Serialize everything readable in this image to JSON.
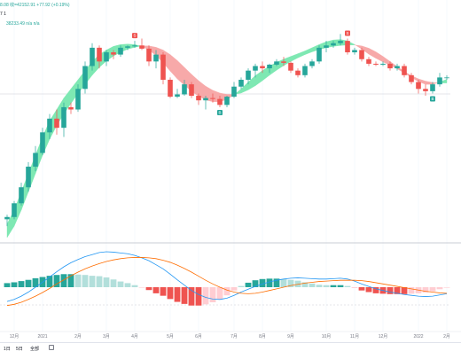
{
  "header": {
    "price_line": "8.08  收=42152.91  +77.92 (+0.19%)",
    "indicator_line_1": "7 1",
    "indicator_line_2": "38233.49  n/a  n/a"
  },
  "timeframes": [
    "1日",
    "5日",
    "全部"
  ],
  "colors": {
    "up": "#26a69a",
    "down": "#ef5350",
    "cloud_up": "#7ee8b3",
    "cloud_down": "#f7a9a9",
    "macd_line": "#2196f3",
    "signal_line": "#ff6d00",
    "hist_up_strong": "#26a69a",
    "hist_up_weak": "#b2dfdb",
    "hist_down_strong": "#ef5350",
    "hist_down_weak": "#ffcdd2",
    "grid": "#f0f3fa",
    "text": "#787b86"
  },
  "chart_data": [
    {
      "type": "candlestick",
      "x_labels": [
        "12月",
        "2021",
        "2月",
        "3月",
        "4月",
        "5月",
        "6月",
        "7月",
        "8月",
        "9月",
        "10月",
        "11月",
        "12月",
        "2022",
        "2月"
      ],
      "y_range": [
        20,
        70
      ],
      "candles": [
        {
          "o": 24.0,
          "h": 25.0,
          "l": 22.5,
          "c": 24.5
        },
        {
          "o": 24.5,
          "h": 28.0,
          "l": 24.0,
          "c": 27.5
        },
        {
          "o": 27.5,
          "h": 32.0,
          "l": 27.0,
          "c": 31.0
        },
        {
          "o": 31.0,
          "h": 36.5,
          "l": 30.0,
          "c": 35.5
        },
        {
          "o": 35.5,
          "h": 40.0,
          "l": 34.5,
          "c": 38.5
        },
        {
          "o": 38.5,
          "h": 44.0,
          "l": 38.0,
          "c": 43.0
        },
        {
          "o": 43.0,
          "h": 47.0,
          "l": 41.5,
          "c": 46.0
        },
        {
          "o": 46.0,
          "h": 48.0,
          "l": 42.5,
          "c": 44.0
        },
        {
          "o": 44.0,
          "h": 49.5,
          "l": 42.0,
          "c": 48.5
        },
        {
          "o": 48.5,
          "h": 49.5,
          "l": 47.0,
          "c": 48.0
        },
        {
          "o": 48.0,
          "h": 53.5,
          "l": 47.5,
          "c": 52.5
        },
        {
          "o": 52.5,
          "h": 58.5,
          "l": 51.5,
          "c": 57.5
        },
        {
          "o": 57.5,
          "h": 62.5,
          "l": 56.5,
          "c": 61.5
        },
        {
          "o": 61.5,
          "h": 62.0,
          "l": 57.0,
          "c": 58.5
        },
        {
          "o": 58.5,
          "h": 61.0,
          "l": 57.5,
          "c": 60.5
        },
        {
          "o": 60.5,
          "h": 61.0,
          "l": 59.0,
          "c": 60.0
        },
        {
          "o": 60.0,
          "h": 62.0,
          "l": 59.5,
          "c": 61.5
        },
        {
          "o": 61.5,
          "h": 62.0,
          "l": 61.0,
          "c": 61.8
        },
        {
          "o": 61.8,
          "h": 63.0,
          "l": 61.5,
          "c": 62.0
        },
        {
          "o": 62.0,
          "h": 63.5,
          "l": 61.0,
          "c": 61.3
        },
        {
          "o": 61.3,
          "h": 62.0,
          "l": 57.5,
          "c": 58.5
        },
        {
          "o": 58.5,
          "h": 61.0,
          "l": 57.0,
          "c": 60.0
        },
        {
          "o": 60.0,
          "h": 60.5,
          "l": 53.5,
          "c": 54.5
        },
        {
          "o": 54.5,
          "h": 55.0,
          "l": 50.5,
          "c": 50.8
        },
        {
          "o": 50.8,
          "h": 52.5,
          "l": 50.5,
          "c": 51.3
        },
        {
          "o": 51.3,
          "h": 54.5,
          "l": 51.0,
          "c": 53.5
        },
        {
          "o": 53.5,
          "h": 54.0,
          "l": 50.5,
          "c": 51.0
        },
        {
          "o": 51.0,
          "h": 51.5,
          "l": 49.0,
          "c": 50.0
        },
        {
          "o": 50.0,
          "h": 51.0,
          "l": 48.0,
          "c": 50.5
        },
        {
          "o": 50.5,
          "h": 51.5,
          "l": 49.5,
          "c": 50.3
        },
        {
          "o": 50.3,
          "h": 51.0,
          "l": 48.5,
          "c": 49.0
        },
        {
          "o": 49.0,
          "h": 51.0,
          "l": 48.5,
          "c": 50.8
        },
        {
          "o": 50.8,
          "h": 54.0,
          "l": 50.5,
          "c": 53.0
        },
        {
          "o": 53.0,
          "h": 55.0,
          "l": 52.5,
          "c": 54.5
        },
        {
          "o": 54.5,
          "h": 57.0,
          "l": 53.5,
          "c": 56.5
        },
        {
          "o": 56.5,
          "h": 58.0,
          "l": 55.0,
          "c": 57.5
        },
        {
          "o": 57.5,
          "h": 58.5,
          "l": 56.0,
          "c": 57.0
        },
        {
          "o": 57.0,
          "h": 58.0,
          "l": 56.0,
          "c": 57.8
        },
        {
          "o": 57.8,
          "h": 59.0,
          "l": 57.5,
          "c": 58.5
        },
        {
          "o": 58.5,
          "h": 59.5,
          "l": 57.5,
          "c": 58.2
        },
        {
          "o": 58.2,
          "h": 58.5,
          "l": 56.0,
          "c": 56.5
        },
        {
          "o": 56.5,
          "h": 57.0,
          "l": 55.0,
          "c": 55.5
        },
        {
          "o": 55.5,
          "h": 58.0,
          "l": 55.0,
          "c": 57.5
        },
        {
          "o": 57.5,
          "h": 59.0,
          "l": 57.0,
          "c": 58.5
        },
        {
          "o": 58.5,
          "h": 62.0,
          "l": 58.0,
          "c": 61.5
        },
        {
          "o": 61.5,
          "h": 63.0,
          "l": 60.5,
          "c": 62.0
        },
        {
          "o": 62.0,
          "h": 63.0,
          "l": 61.5,
          "c": 62.5
        },
        {
          "o": 62.5,
          "h": 64.5,
          "l": 62.0,
          "c": 63.0
        },
        {
          "o": 63.0,
          "h": 63.5,
          "l": 60.0,
          "c": 60.5
        },
        {
          "o": 60.5,
          "h": 61.5,
          "l": 60.0,
          "c": 61.0
        },
        {
          "o": 61.0,
          "h": 61.5,
          "l": 58.5,
          "c": 59.0
        },
        {
          "o": 59.0,
          "h": 59.5,
          "l": 57.5,
          "c": 58.0
        },
        {
          "o": 58.0,
          "h": 58.5,
          "l": 57.5,
          "c": 57.8
        },
        {
          "o": 57.8,
          "h": 58.5,
          "l": 57.5,
          "c": 58.0
        },
        {
          "o": 58.0,
          "h": 58.5,
          "l": 56.5,
          "c": 57.0
        },
        {
          "o": 57.0,
          "h": 58.0,
          "l": 56.5,
          "c": 57.5
        },
        {
          "o": 57.5,
          "h": 58.0,
          "l": 55.0,
          "c": 55.5
        },
        {
          "o": 55.5,
          "h": 56.0,
          "l": 53.5,
          "c": 54.0
        },
        {
          "o": 54.0,
          "h": 54.5,
          "l": 51.5,
          "c": 52.5
        },
        {
          "o": 52.5,
          "h": 53.5,
          "l": 51.0,
          "c": 52.0
        },
        {
          "o": 52.0,
          "h": 54.0,
          "l": 51.5,
          "c": 53.5
        },
        {
          "o": 53.5,
          "h": 56.0,
          "l": 53.0,
          "c": 55.0
        },
        {
          "o": 55.0,
          "h": 55.5,
          "l": 54.5,
          "c": 55.0
        }
      ],
      "cloud": {
        "fast": [
          23,
          26,
          30,
          34,
          38,
          42,
          45.5,
          48,
          50.5,
          52.5,
          54.5,
          56.5,
          58.5,
          60,
          61,
          61.8,
          62.2,
          62.3,
          62.2,
          61.8,
          61,
          59.8,
          58.2,
          56.4,
          54.7,
          53.3,
          52,
          50.9,
          50.1,
          49.7,
          49.7,
          50.2,
          51.2,
          52.5,
          54,
          55.4,
          56.5,
          57.5,
          58.3,
          59,
          59.6,
          60.2,
          60.8,
          61.5,
          62.2,
          62.8,
          63.2,
          63.3,
          63,
          62.2,
          61.2,
          60.1,
          59.2,
          58.4,
          57.7,
          56.9,
          56,
          55,
          54.1,
          53.5,
          53.5,
          54,
          54.6
        ],
        "slow": [
          20,
          22.5,
          26,
          30,
          34,
          38,
          41.5,
          44.5,
          47,
          49.3,
          51.5,
          53.5,
          55.5,
          57.2,
          58.6,
          59.7,
          60.5,
          61.2,
          61.6,
          61.9,
          61.9,
          61.6,
          61,
          60,
          58.7,
          57.2,
          55.7,
          54.3,
          53.1,
          52.2,
          51.6,
          51.3,
          51.3,
          51.6,
          52.3,
          53.2,
          54.3,
          55.5,
          56.6,
          57.6,
          58.5,
          59.3,
          60,
          60.6,
          61.1,
          61.5,
          61.8,
          62,
          62.1,
          62.1,
          61.9,
          61.4,
          60.6,
          59.6,
          58.5,
          57.4,
          56.3,
          55.4,
          54.7,
          54.2,
          53.9,
          53.8,
          53.8
        ]
      },
      "markers": [
        {
          "index": 18,
          "kind": "sell",
          "label": "S"
        },
        {
          "index": 30,
          "kind": "buy",
          "label": "B"
        },
        {
          "index": 48,
          "kind": "sell",
          "label": "S"
        },
        {
          "index": 60,
          "kind": "buy",
          "label": "B"
        }
      ]
    },
    {
      "type": "macd",
      "y_range": [
        -1,
        1
      ],
      "macd": [
        -0.35,
        -0.3,
        -0.22,
        -0.12,
        0,
        0.12,
        0.25,
        0.38,
        0.5,
        0.6,
        0.68,
        0.75,
        0.8,
        0.85,
        0.87,
        0.86,
        0.84,
        0.82,
        0.78,
        0.72,
        0.65,
        0.55,
        0.45,
        0.32,
        0.18,
        0.05,
        -0.08,
        -0.18,
        -0.25,
        -0.29,
        -0.3,
        -0.27,
        -0.2,
        -0.12,
        -0.05,
        0.02,
        0.08,
        0.13,
        0.17,
        0.2,
        0.22,
        0.23,
        0.22,
        0.21,
        0.2,
        0.2,
        0.21,
        0.22,
        0.2,
        0.15,
        0.08,
        0.02,
        -0.04,
        -0.08,
        -0.12,
        -0.15,
        -0.18,
        -0.2,
        -0.22,
        -0.23,
        -0.22,
        -0.19,
        -0.16
      ],
      "signal": [
        -0.45,
        -0.42,
        -0.37,
        -0.3,
        -0.22,
        -0.13,
        -0.03,
        0.08,
        0.18,
        0.28,
        0.37,
        0.45,
        0.52,
        0.58,
        0.63,
        0.67,
        0.7,
        0.72,
        0.73,
        0.73,
        0.72,
        0.7,
        0.66,
        0.61,
        0.54,
        0.46,
        0.37,
        0.27,
        0.17,
        0.08,
        0,
        -0.07,
        -0.12,
        -0.15,
        -0.16,
        -0.15,
        -0.12,
        -0.08,
        -0.04,
        0,
        0.04,
        0.07,
        0.1,
        0.12,
        0.14,
        0.15,
        0.16,
        0.17,
        0.17,
        0.17,
        0.16,
        0.14,
        0.11,
        0.08,
        0.05,
        0.02,
        -0.01,
        -0.04,
        -0.07,
        -0.1,
        -0.12,
        -0.14,
        -0.15
      ],
      "histogram": [
        0.1,
        0.12,
        0.15,
        0.18,
        0.22,
        0.25,
        0.28,
        0.3,
        0.32,
        0.32,
        0.31,
        0.3,
        0.28,
        0.27,
        0.24,
        0.19,
        0.14,
        0.1,
        0.05,
        -0.01,
        -0.07,
        -0.15,
        -0.21,
        -0.29,
        -0.36,
        -0.41,
        -0.45,
        -0.45,
        -0.42,
        -0.37,
        -0.3,
        -0.2,
        -0.08,
        0.03,
        0.11,
        0.17,
        0.2,
        0.21,
        0.21,
        0.2,
        0.18,
        0.16,
        0.12,
        0.09,
        0.06,
        0.05,
        0.05,
        0.05,
        0.03,
        -0.02,
        -0.08,
        -0.12,
        -0.15,
        -0.16,
        -0.17,
        -0.17,
        -0.17,
        -0.16,
        -0.15,
        -0.13,
        -0.1,
        -0.05,
        -0.01
      ]
    }
  ]
}
